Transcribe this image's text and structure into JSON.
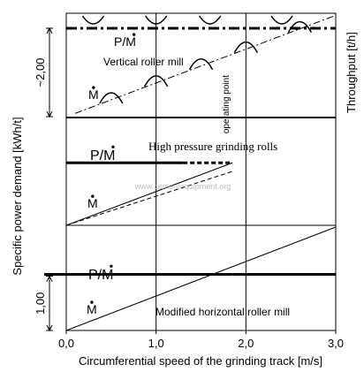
{
  "chart_data": {
    "type": "line",
    "xlabel": "Circumferential speed of the grinding track [m/s]",
    "ylabel_left": "Specific power demand [kWh/t]",
    "ylabel_right": "Throughput [t/h]",
    "x_ticks": [
      "0,0",
      "1,0",
      "2,0",
      "3,0"
    ],
    "xlim": [
      0,
      3
    ],
    "grid": true,
    "legend": "none",
    "panels": [
      {
        "name": "Vertical roller mill",
        "power_label": "P/M",
        "throughput_label": "M",
        "power_level": 1.0,
        "throughput_line": {
          "x": [
            0.1,
            3.0
          ],
          "y": [
            0.04,
            0.98
          ]
        },
        "roller_arcs_top": [
          0.3,
          1.0,
          1.6,
          2.4
        ],
        "roller_arcs_rising": [
          0.5,
          1.0,
          1.5,
          2.0,
          2.6
        ],
        "annotation": "operating point",
        "annotation_x": 1.9,
        "scale_label": "~2,00"
      },
      {
        "name": "High pressure grinding rolls",
        "power_label": "P/M",
        "throughput_label": "M",
        "power_level": 0.58,
        "power_end_x": 1.85,
        "throughput_lines": [
          {
            "x": [
              0.0,
              1.85
            ],
            "y": [
              0.0,
              0.58
            ]
          },
          {
            "x": [
              0.0,
              1.85
            ],
            "y": [
              0.0,
              0.5
            ]
          }
        ]
      },
      {
        "name": "Modified horizontal roller mill",
        "power_label": "P/M",
        "throughput_label": "M",
        "power_level": 0.55,
        "throughput_line": {
          "x": [
            0.0,
            3.0
          ],
          "y": [
            0.0,
            1.0
          ]
        },
        "scale_label": "1,00"
      }
    ]
  },
  "watermark": "www.cementequipment.org"
}
